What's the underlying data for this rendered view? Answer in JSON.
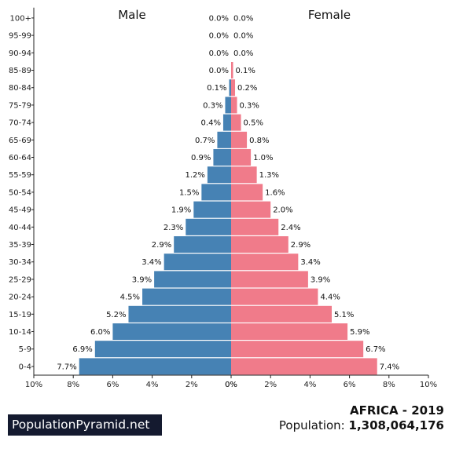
{
  "brand": {
    "label": "PopulationPyramid.net"
  },
  "region": {
    "title": "AFRICA - 2019"
  },
  "population": {
    "label": "Population:",
    "value": "1,308,064,176"
  },
  "colors": {
    "male": "#4682b4",
    "female": "#f07b8a"
  },
  "chart_data": {
    "type": "bar",
    "orientation": "horizontal-pyramid",
    "left_label": "Male",
    "right_label": "Female",
    "categories": [
      "0-4",
      "5-9",
      "10-14",
      "15-19",
      "20-24",
      "25-29",
      "30-34",
      "35-39",
      "40-44",
      "45-49",
      "50-54",
      "55-59",
      "60-64",
      "65-69",
      "70-74",
      "75-79",
      "80-84",
      "85-89",
      "90-94",
      "95-99",
      "100+"
    ],
    "series": [
      {
        "name": "Male",
        "values": [
          7.7,
          6.9,
          6.0,
          5.2,
          4.5,
          3.9,
          3.4,
          2.9,
          2.3,
          1.9,
          1.5,
          1.2,
          0.9,
          0.7,
          0.4,
          0.3,
          0.1,
          0.0,
          0.0,
          0.0,
          0.0
        ],
        "labels": [
          "7.7%",
          "6.9%",
          "6.0%",
          "5.2%",
          "4.5%",
          "3.9%",
          "3.4%",
          "2.9%",
          "2.3%",
          "1.9%",
          "1.5%",
          "1.2%",
          "0.9%",
          "0.7%",
          "0.4%",
          "0.3%",
          "0.1%",
          "0.0%",
          "0.0%",
          "0.0%",
          "0.0%"
        ]
      },
      {
        "name": "Female",
        "values": [
          7.4,
          6.7,
          5.9,
          5.1,
          4.4,
          3.9,
          3.4,
          2.9,
          2.4,
          2.0,
          1.6,
          1.3,
          1.0,
          0.8,
          0.5,
          0.3,
          0.2,
          0.1,
          0.0,
          0.0,
          0.0
        ],
        "labels": [
          "7.4%",
          "6.7%",
          "5.9%",
          "5.1%",
          "4.4%",
          "3.9%",
          "3.4%",
          "2.9%",
          "2.4%",
          "2.0%",
          "1.6%",
          "1.3%",
          "1.0%",
          "0.8%",
          "0.5%",
          "0.3%",
          "0.2%",
          "0.1%",
          "0.0%",
          "0.0%",
          "0.0%"
        ]
      }
    ],
    "x_ticks_left": [
      "10%",
      "8%",
      "6%",
      "4%",
      "2%",
      "0%"
    ],
    "x_ticks_right": [
      "0%",
      "2%",
      "4%",
      "6%",
      "8%",
      "10%"
    ],
    "xlim": [
      0,
      10
    ],
    "grid": false
  }
}
